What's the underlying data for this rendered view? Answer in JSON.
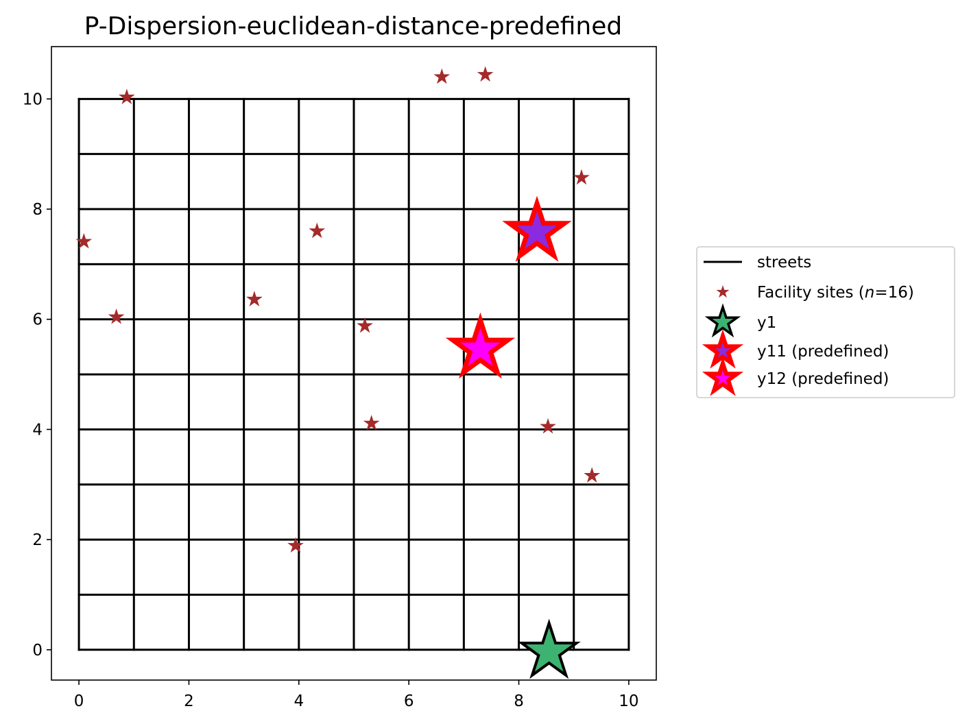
{
  "chart_data": {
    "type": "scatter",
    "title": "P-Dispersion-euclidean-distance-predefined",
    "xlim": [
      -0.5,
      10.5
    ],
    "ylim": [
      -0.55,
      10.95
    ],
    "x_ticks": [
      0,
      2,
      4,
      6,
      8,
      10
    ],
    "y_ticks": [
      0,
      2,
      4,
      6,
      8,
      10
    ],
    "grid": false,
    "legend_position": "center right, outside plot",
    "streets": {
      "name": "streets",
      "color": "#000000",
      "vertical_x": [
        0,
        1,
        2,
        3,
        4,
        5,
        6,
        7,
        8,
        9,
        10
      ],
      "horizontal_y": [
        0,
        1,
        2,
        3,
        4,
        5,
        6,
        7,
        8,
        9,
        10
      ],
      "span": [
        0,
        10
      ]
    },
    "facility_sites": {
      "legend_prefix": "Facility sites (",
      "legend_n": "n",
      "legend_suffix": "=16)",
      "color": "#a52a2a",
      "points": [
        {
          "x": 0.87,
          "y": 10.03
        },
        {
          "x": 6.6,
          "y": 10.4
        },
        {
          "x": 7.39,
          "y": 10.44
        },
        {
          "x": 9.14,
          "y": 8.57
        },
        {
          "x": 0.09,
          "y": 7.41
        },
        {
          "x": 4.33,
          "y": 7.6
        },
        {
          "x": 0.68,
          "y": 6.04
        },
        {
          "x": 3.19,
          "y": 6.36
        },
        {
          "x": 5.2,
          "y": 5.88
        },
        {
          "x": 5.32,
          "y": 4.11
        },
        {
          "x": 8.53,
          "y": 4.05
        },
        {
          "x": 9.33,
          "y": 3.16
        },
        {
          "x": 3.94,
          "y": 1.89
        },
        {
          "x": 8.55,
          "y": -0.04
        },
        {
          "x": 8.33,
          "y": 7.58
        },
        {
          "x": 7.3,
          "y": 5.46
        }
      ]
    },
    "selected": [
      {
        "name": "y1",
        "x": 8.55,
        "y": -0.04,
        "fill": "#3cb371",
        "edge": "#000000"
      },
      {
        "name": "y11 (predefined)",
        "x": 8.33,
        "y": 7.58,
        "fill": "#8a2be2",
        "edge": "#ff0000"
      },
      {
        "name": "y12 (predefined)",
        "x": 7.3,
        "y": 5.46,
        "fill": "#ff00ff",
        "edge": "#ff0000"
      }
    ]
  }
}
